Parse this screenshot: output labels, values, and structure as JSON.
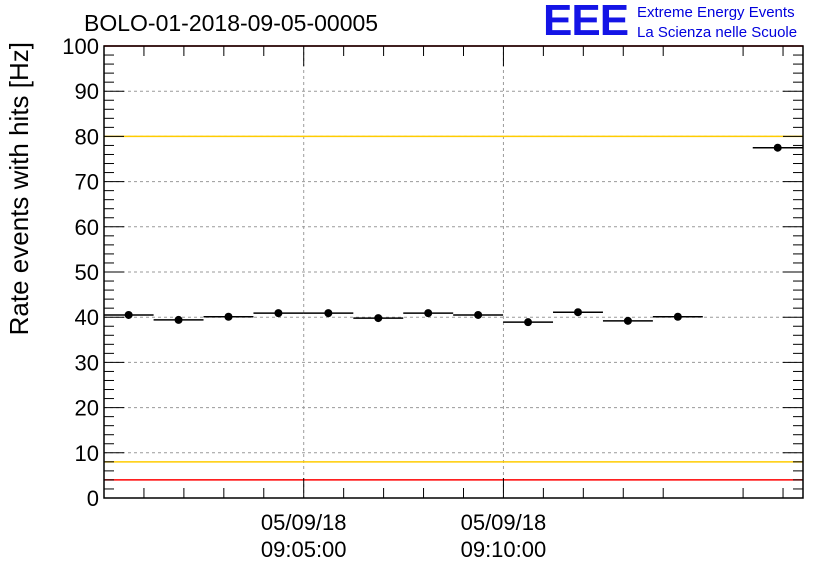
{
  "page": {
    "title": "BOLO-01-2018-09-05-00005",
    "logo": {
      "mark": "EEE",
      "line1": "Extreme Energy Events",
      "line2": "La Scienza nelle Scuole"
    }
  },
  "chart_data": {
    "type": "scatter",
    "title": "BOLO-01-2018-09-05-00005",
    "xlabel": "",
    "ylabel": "Rate events with hits [Hz]",
    "ylim": [
      0,
      100
    ],
    "yticks": [
      0,
      10,
      20,
      30,
      40,
      50,
      60,
      70,
      80,
      90,
      100
    ],
    "xticks": [
      {
        "x": "09:05:00",
        "date": "05/09/18",
        "time": "09:05:00"
      },
      {
        "x": "09:10:00",
        "date": "05/09/18",
        "time": "09:10:00"
      }
    ],
    "xlim": [
      "09:00:00",
      "09:17:30"
    ],
    "bin_width_s": 75,
    "grid": true,
    "series": [
      {
        "points": [
          {
            "x": "09:00:37",
            "y": 40.5
          },
          {
            "x": "09:01:52",
            "y": 39.4
          },
          {
            "x": "09:03:07",
            "y": 40.1
          },
          {
            "x": "09:04:22",
            "y": 40.9
          },
          {
            "x": "09:05:37",
            "y": 40.9
          },
          {
            "x": "09:06:52",
            "y": 39.8
          },
          {
            "x": "09:08:07",
            "y": 40.9
          },
          {
            "x": "09:09:22",
            "y": 40.5
          },
          {
            "x": "09:10:37",
            "y": 38.9
          },
          {
            "x": "09:11:52",
            "y": 41.1
          },
          {
            "x": "09:13:07",
            "y": 39.2
          },
          {
            "x": "09:14:22",
            "y": 40.1
          },
          {
            "x": "09:16:52",
            "y": 77.5
          }
        ]
      }
    ],
    "reference_lines": [
      {
        "y": 100,
        "color": "#ff0000"
      },
      {
        "y": 80,
        "color": "#ffcc00"
      },
      {
        "y": 8,
        "color": "#ffcc00"
      },
      {
        "y": 4,
        "color": "#ff0000"
      }
    ]
  }
}
